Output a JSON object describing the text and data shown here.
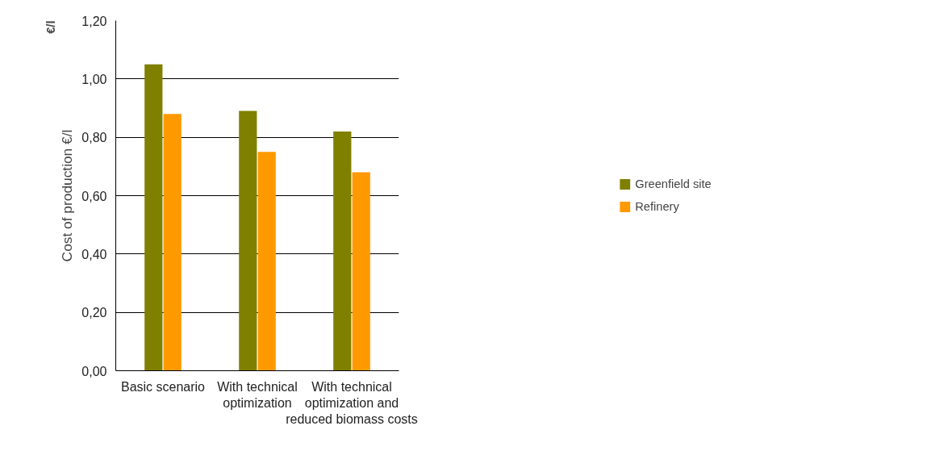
{
  "chart_data": {
    "type": "bar",
    "ylabel": "Cost of production €/l",
    "annotations": [
      "€/l"
    ],
    "categories": [
      "Basic scenario",
      "With technical optimization",
      "With technical optimization and reduced biomass costs"
    ],
    "series": [
      {
        "name": "Greenfield site",
        "color": "#808000",
        "values": [
          1.05,
          0.89,
          0.82
        ]
      },
      {
        "name": "Refinery",
        "color": "#ff9900",
        "values": [
          0.88,
          0.75,
          0.68
        ]
      }
    ],
    "ylim": [
      0,
      1.2
    ],
    "yticks": [
      {
        "value": 0,
        "label": "0,00"
      },
      {
        "value": 0.2,
        "label": "0,20"
      },
      {
        "value": 0.4,
        "label": "0,40"
      },
      {
        "value": 0.6,
        "label": "0,60"
      },
      {
        "value": 0.8,
        "label": "0,80"
      },
      {
        "value": 1.0,
        "label": "1,00"
      },
      {
        "value": 1.2,
        "label": "1,20"
      }
    ],
    "grid": "y",
    "legend": "right"
  }
}
